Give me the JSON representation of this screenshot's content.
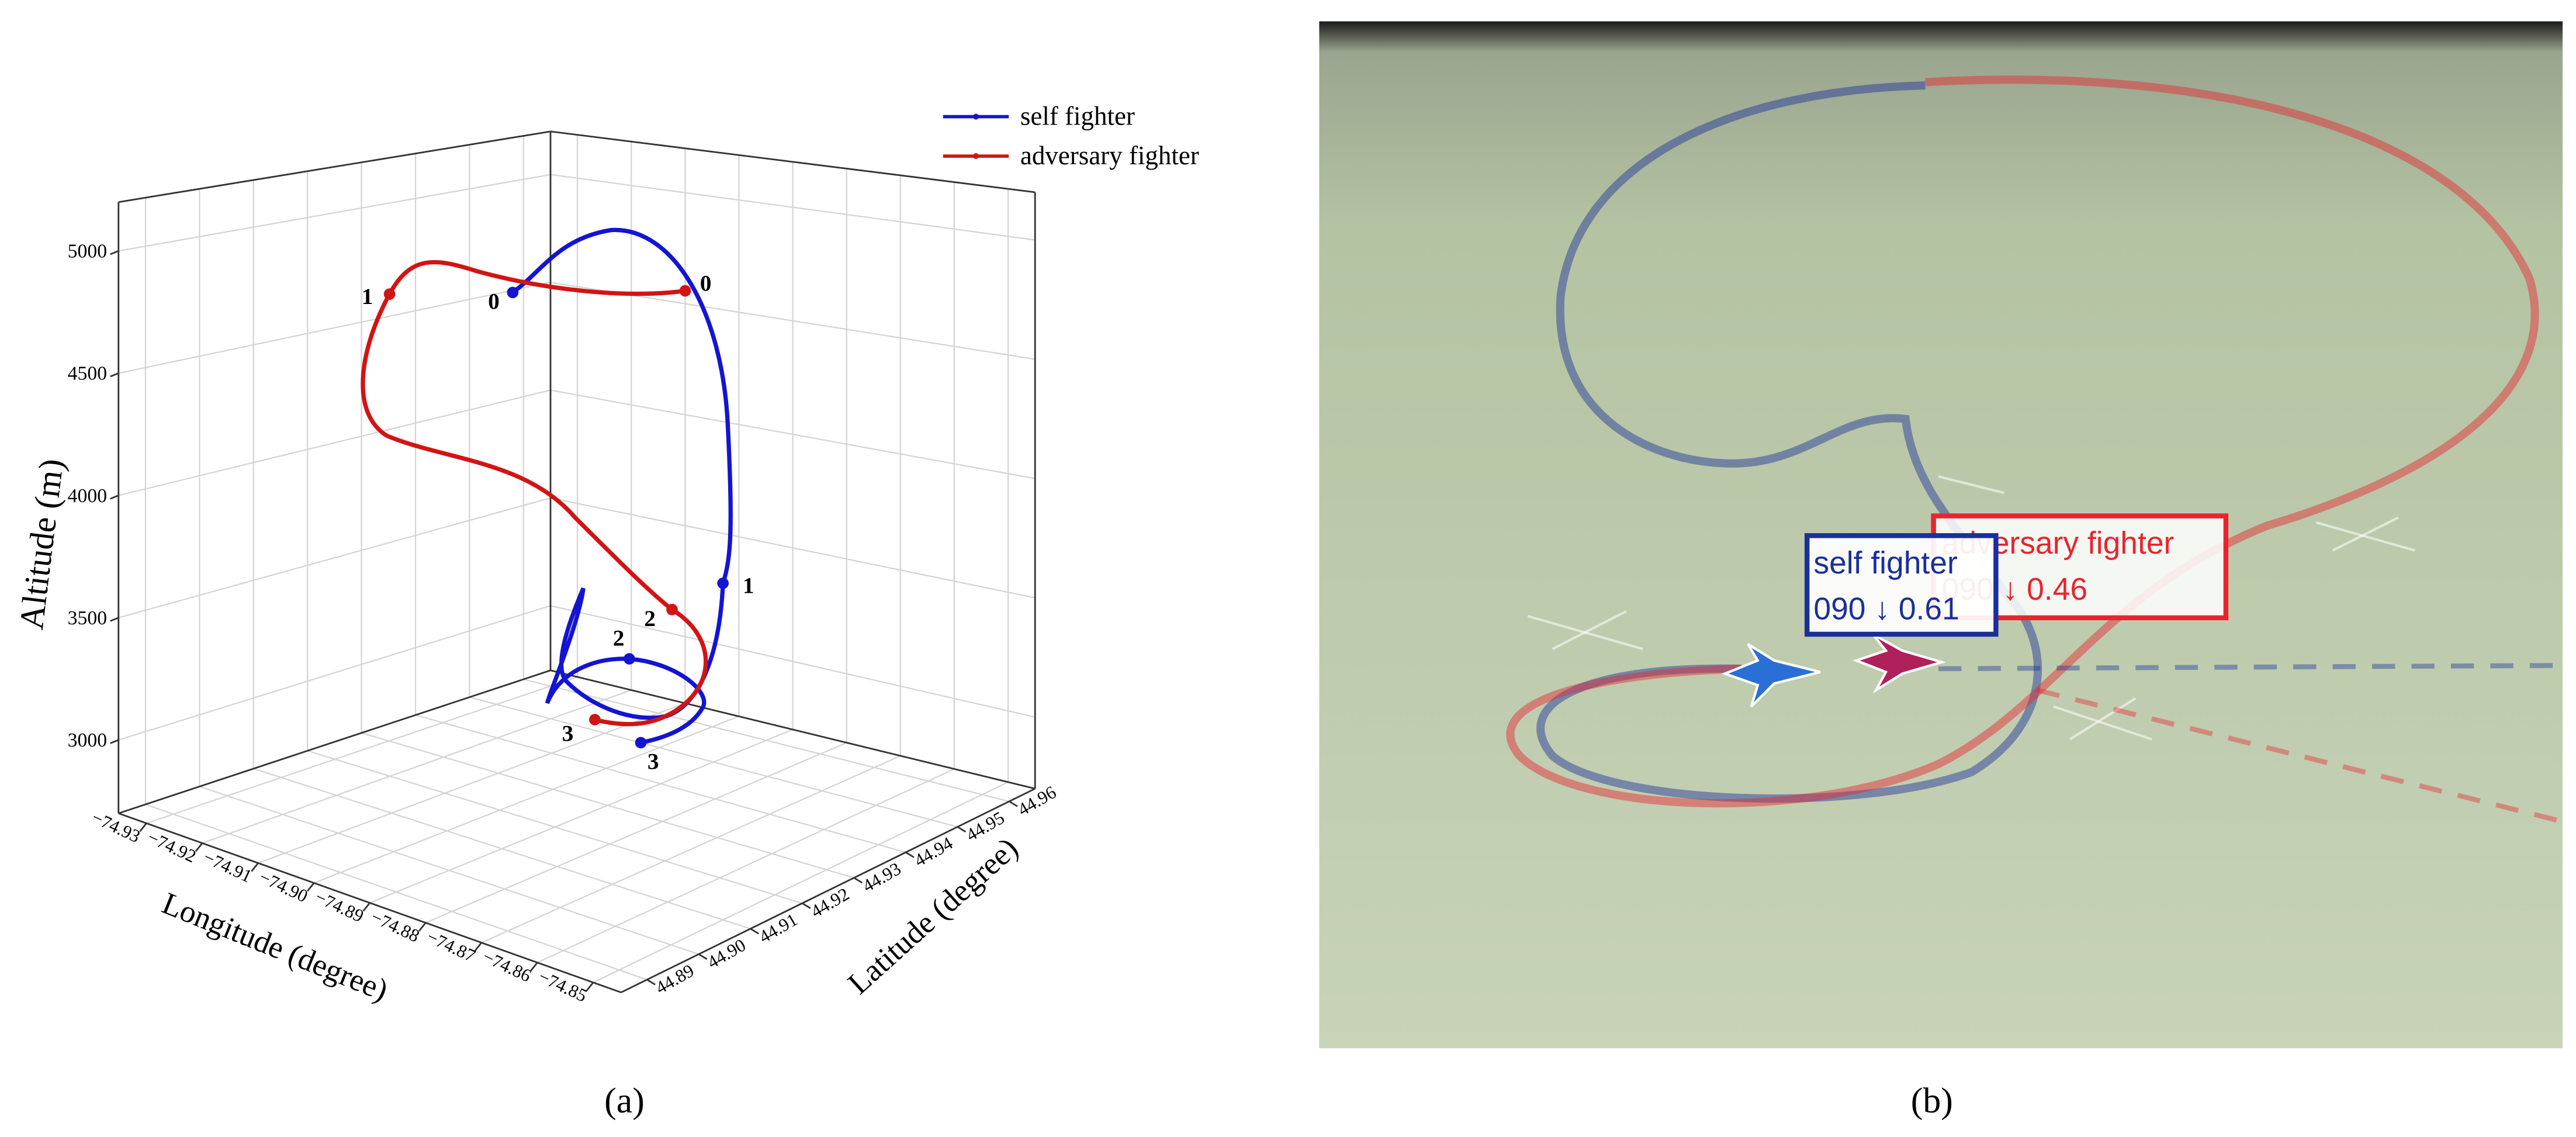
{
  "chart_data": {
    "type": "line3d",
    "xlabel": "Longitude (degree)",
    "ylabel": "Latitude (degree)",
    "zlabel": "Altitude (m)",
    "xlim": [
      -74.935,
      -74.845
    ],
    "xticks": [
      {
        "value": -74.93,
        "label": "−74.93"
      },
      {
        "value": -74.92,
        "label": "−74.92"
      },
      {
        "value": -74.91,
        "label": "−74.91"
      },
      {
        "value": -74.9,
        "label": "−74.90"
      },
      {
        "value": -74.89,
        "label": "−74.89"
      },
      {
        "value": -74.88,
        "label": "−74.88"
      },
      {
        "value": -74.87,
        "label": "−74.87"
      },
      {
        "value": -74.86,
        "label": "−74.86"
      },
      {
        "value": -74.85,
        "label": "−74.85"
      }
    ],
    "ylim": [
      44.885,
      44.965
    ],
    "yticks": [
      44.89,
      {
        "value": 44.9,
        "label": "44.90"
      },
      44.91,
      44.92,
      44.93,
      44.94,
      44.95,
      44.96
    ],
    "zlim": [
      2700,
      5200
    ],
    "zticks": [
      3000,
      3500,
      4000,
      4500,
      5000
    ],
    "grid": true,
    "series": [
      {
        "name": "self fighter",
        "color": "#1414d2",
        "point_labels": [
          "0",
          "1",
          "2",
          "3"
        ]
      },
      {
        "name": "adversary fighter",
        "color": "#d21414",
        "point_labels": [
          "0",
          "1",
          "2",
          "3"
        ]
      }
    ]
  },
  "panel_labels": [
    "(a)",
    "(b)"
  ],
  "screenshot": {
    "tags": [
      {
        "name": "adversary fighter",
        "status": "090 ↓ 0.46",
        "color": "#e8242e"
      },
      {
        "name": "self fighter",
        "status": "090 ↓ 0.61",
        "color": "#1a2f9c"
      }
    ]
  }
}
